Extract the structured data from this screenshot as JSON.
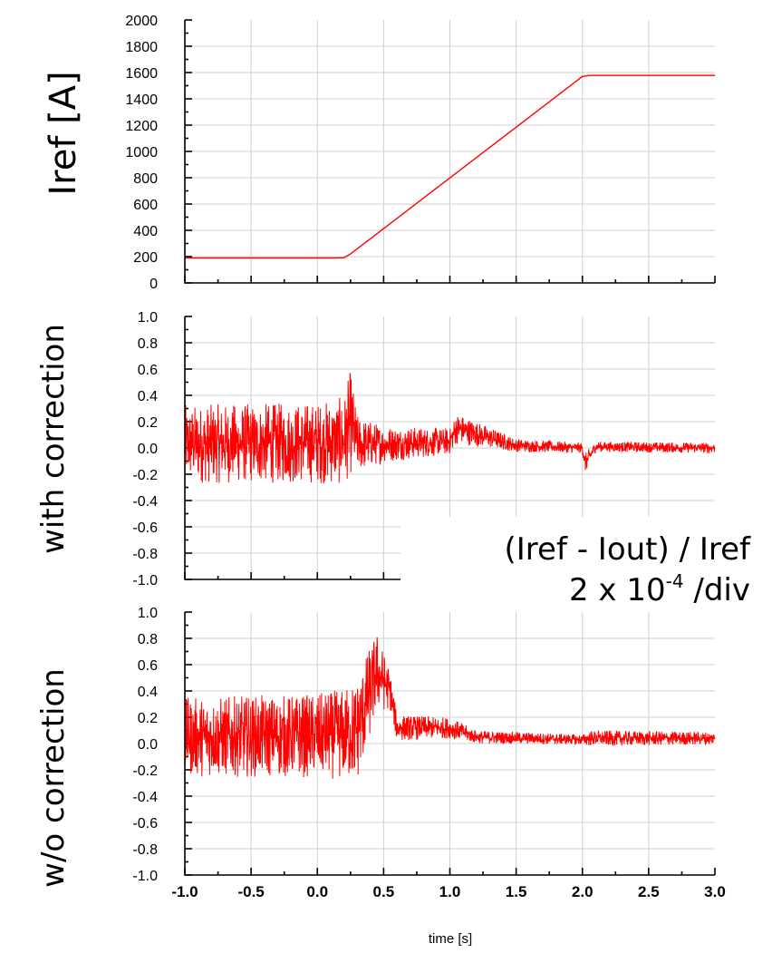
{
  "chart_data": [
    {
      "type": "line",
      "ylabel": "Iref [A]",
      "xlim": [
        -1.0,
        3.0
      ],
      "ylim": [
        0,
        2000
      ],
      "yticks": [
        "0",
        "200",
        "400",
        "600",
        "800",
        "1000",
        "1200",
        "1400",
        "1600",
        "1800",
        "2000"
      ],
      "grid": true,
      "color": "#ff0000",
      "series": [
        {
          "x": [
            -1.0,
            0.15,
            0.2,
            0.25,
            2.0,
            2.05,
            3.0
          ],
          "values": [
            190,
            190,
            192,
            220,
            1570,
            1578,
            1578
          ]
        }
      ]
    },
    {
      "type": "line",
      "ylabel": "with correction",
      "xlim": [
        -1.0,
        3.0
      ],
      "ylim": [
        -1.0,
        1.0
      ],
      "yticks": [
        "1.0",
        "0.8",
        "0.6",
        "0.4",
        "0.2",
        "0.0",
        "-0.2",
        "-0.4",
        "-0.6",
        "-0.8",
        "-1.0"
      ],
      "grid": true,
      "color": "#ff0000",
      "series": [
        {
          "x": [
            -1.0,
            0.0,
            0.2,
            0.25,
            0.3,
            0.5,
            1.0,
            1.05,
            1.5,
            2.0,
            2.02,
            2.1,
            3.0
          ],
          "values": [
            0.03,
            0.04,
            0.05,
            0.2,
            0.03,
            0.03,
            0.05,
            0.15,
            0.02,
            0.0,
            -0.12,
            0.01,
            0.0
          ],
          "amplitude": [
            0.3,
            0.31,
            0.34,
            0.4,
            0.22,
            0.14,
            0.1,
            0.12,
            0.05,
            0.04,
            0.08,
            0.04,
            0.04
          ]
        }
      ]
    },
    {
      "type": "line",
      "ylabel": "w/o correction",
      "xlabel": "time [s]",
      "xlim": [
        -1.0,
        3.0
      ],
      "ylim": [
        -1.0,
        1.0
      ],
      "xticks": [
        "-1.0",
        "-0.5",
        "0.0",
        "0.5",
        "1.0",
        "1.5",
        "2.0",
        "2.5",
        "3.0"
      ],
      "yticks": [
        "1.0",
        "0.8",
        "0.6",
        "0.4",
        "0.2",
        "0.0",
        "-0.2",
        "-0.4",
        "-0.6",
        "-0.8",
        "-1.0"
      ],
      "grid": true,
      "color": "#ff0000",
      "series": [
        {
          "x": [
            -1.0,
            0.0,
            0.2,
            0.3,
            0.4,
            0.45,
            0.55,
            0.6,
            1.0,
            1.2,
            2.0,
            2.05,
            3.0
          ],
          "values": [
            0.05,
            0.06,
            0.07,
            0.1,
            0.4,
            0.55,
            0.4,
            0.12,
            0.12,
            0.05,
            0.03,
            0.04,
            0.04
          ],
          "amplitude": [
            0.3,
            0.32,
            0.35,
            0.4,
            0.35,
            0.3,
            0.15,
            0.1,
            0.08,
            0.05,
            0.04,
            0.06,
            0.05
          ]
        }
      ]
    }
  ],
  "annotation": {
    "line1": "(Iref - Iout) / Iref",
    "line2_main": "2 x 10",
    "line2_exp": "-4",
    "line2_unit": " /div"
  }
}
